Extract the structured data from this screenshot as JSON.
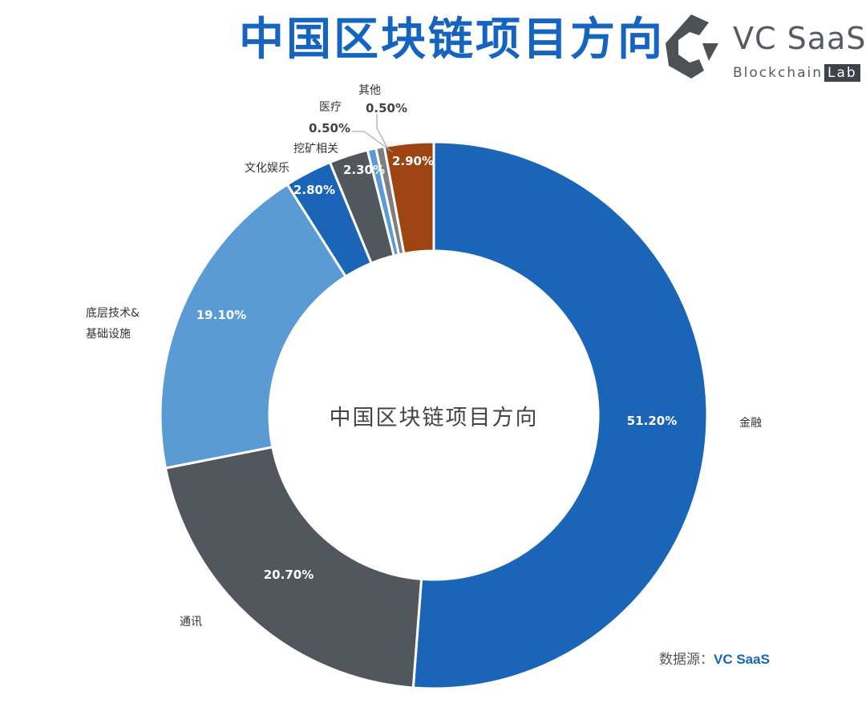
{
  "title": "中国区块链项目方向",
  "logo": {
    "name": "VC SaaS",
    "sub_prefix": "Blockchain",
    "sub_badge": "Lab"
  },
  "source": {
    "label": "数据源：",
    "brand": "VC SaaS"
  },
  "chart_data": {
    "type": "pie",
    "donut": true,
    "center_label": "中国区块链项目方向",
    "slices": [
      {
        "label": "金融",
        "value": 51.2,
        "display": "51.20%",
        "color": "#1b65b8"
      },
      {
        "label": "通讯",
        "value": 20.7,
        "display": "20.70%",
        "color": "#52575d"
      },
      {
        "label": "底层技术&基础设施",
        "value": 19.1,
        "display": "19.10%",
        "color": "#5b9bd5"
      },
      {
        "label": "文化娱乐",
        "value": 2.8,
        "display": "2.80%",
        "color": "#1b65b8"
      },
      {
        "label": "挖矿相关",
        "value": 2.3,
        "display": "2.30%",
        "color": "#52575d"
      },
      {
        "label": "医疗",
        "value": 0.5,
        "display": "0.50%",
        "color": "#5b9bd5"
      },
      {
        "label": "其他",
        "value": 0.5,
        "display": "0.50%",
        "color": "#7f7f7f"
      },
      {
        "label": "",
        "value": 2.9,
        "display": "2.90%",
        "color": "#9e4413"
      }
    ]
  }
}
